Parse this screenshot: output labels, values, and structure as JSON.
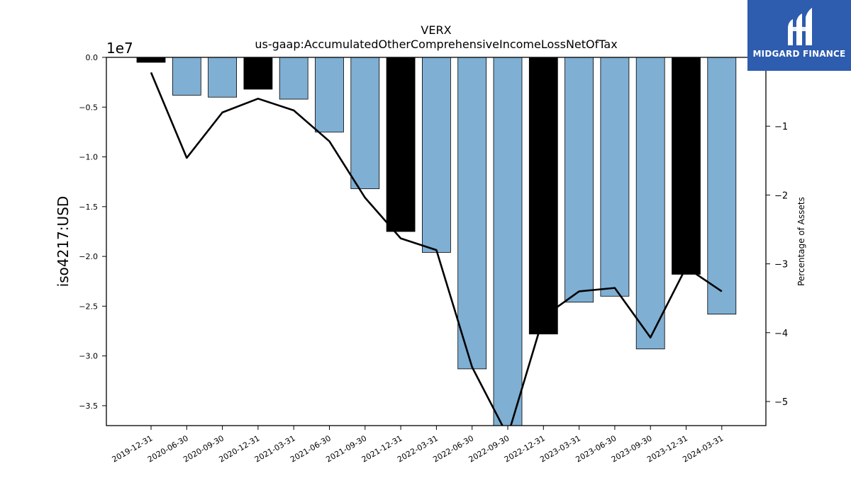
{
  "chart_data": {
    "type": "bar",
    "title": "VERX",
    "subtitle": "us-gaap:AccumulatedOtherComprehensiveIncomeLossNetOfTax",
    "ylabel": "iso4217:USD",
    "ylabel_right": "Percentage of Assets",
    "y_offset_label": "1e7",
    "categories": [
      "2019-12-31",
      "2020-06-30",
      "2020-09-30",
      "2020-12-31",
      "2021-03-31",
      "2021-06-30",
      "2021-09-30",
      "2021-12-31",
      "2022-03-31",
      "2022-06-30",
      "2022-09-30",
      "2022-12-31",
      "2023-03-31",
      "2023-06-30",
      "2023-09-30",
      "2023-12-31",
      "2024-03-31"
    ],
    "series": [
      {
        "values": [
          -500000,
          -3800000,
          -4000000,
          -3200000,
          -4200000,
          -7500000,
          -13200000,
          -17500000,
          -19600000,
          -31300000,
          -37000000,
          -27800000,
          -24600000,
          -24000000,
          -29300000,
          -21800000,
          -25800000
        ],
        "bar_colors": [
          "#000000",
          "#7fafd3",
          "#7fafd3",
          "#000000",
          "#7fafd3",
          "#7fafd3",
          "#7fafd3",
          "#000000",
          "#7fafd3",
          "#7fafd3",
          "#7fafd3",
          "#000000",
          "#7fafd3",
          "#7fafd3",
          "#7fafd3",
          "#000000",
          "#7fafd3"
        ]
      },
      {
        "axis": "right",
        "type": "line",
        "values": [
          -0.22,
          -1.46,
          -0.8,
          -0.6,
          -0.77,
          -1.22,
          -2.04,
          -2.63,
          -2.8,
          -4.5,
          -5.5,
          -3.77,
          -3.4,
          -3.35,
          -4.07,
          -3.05,
          -3.4
        ]
      }
    ],
    "ylim": [
      -37000000,
      0
    ],
    "yticks": [
      0,
      -5000000,
      -10000000,
      -15000000,
      -20000000,
      -25000000,
      -30000000,
      -35000000
    ],
    "ytick_labels": [
      "0.0",
      "−0.5",
      "−1.0",
      "−1.5",
      "−2.0",
      "−2.5",
      "−3.0",
      "−3.5"
    ],
    "ylim_right": [
      -5.35,
      0.0
    ],
    "yticks_right": [
      -1,
      -2,
      -3,
      -4,
      -5
    ],
    "ytick_labels_right": [
      "−1",
      "−2",
      "−3",
      "−4",
      "−5"
    ],
    "grid": false
  },
  "logo": {
    "text": "MIDGARD FINANCE"
  }
}
